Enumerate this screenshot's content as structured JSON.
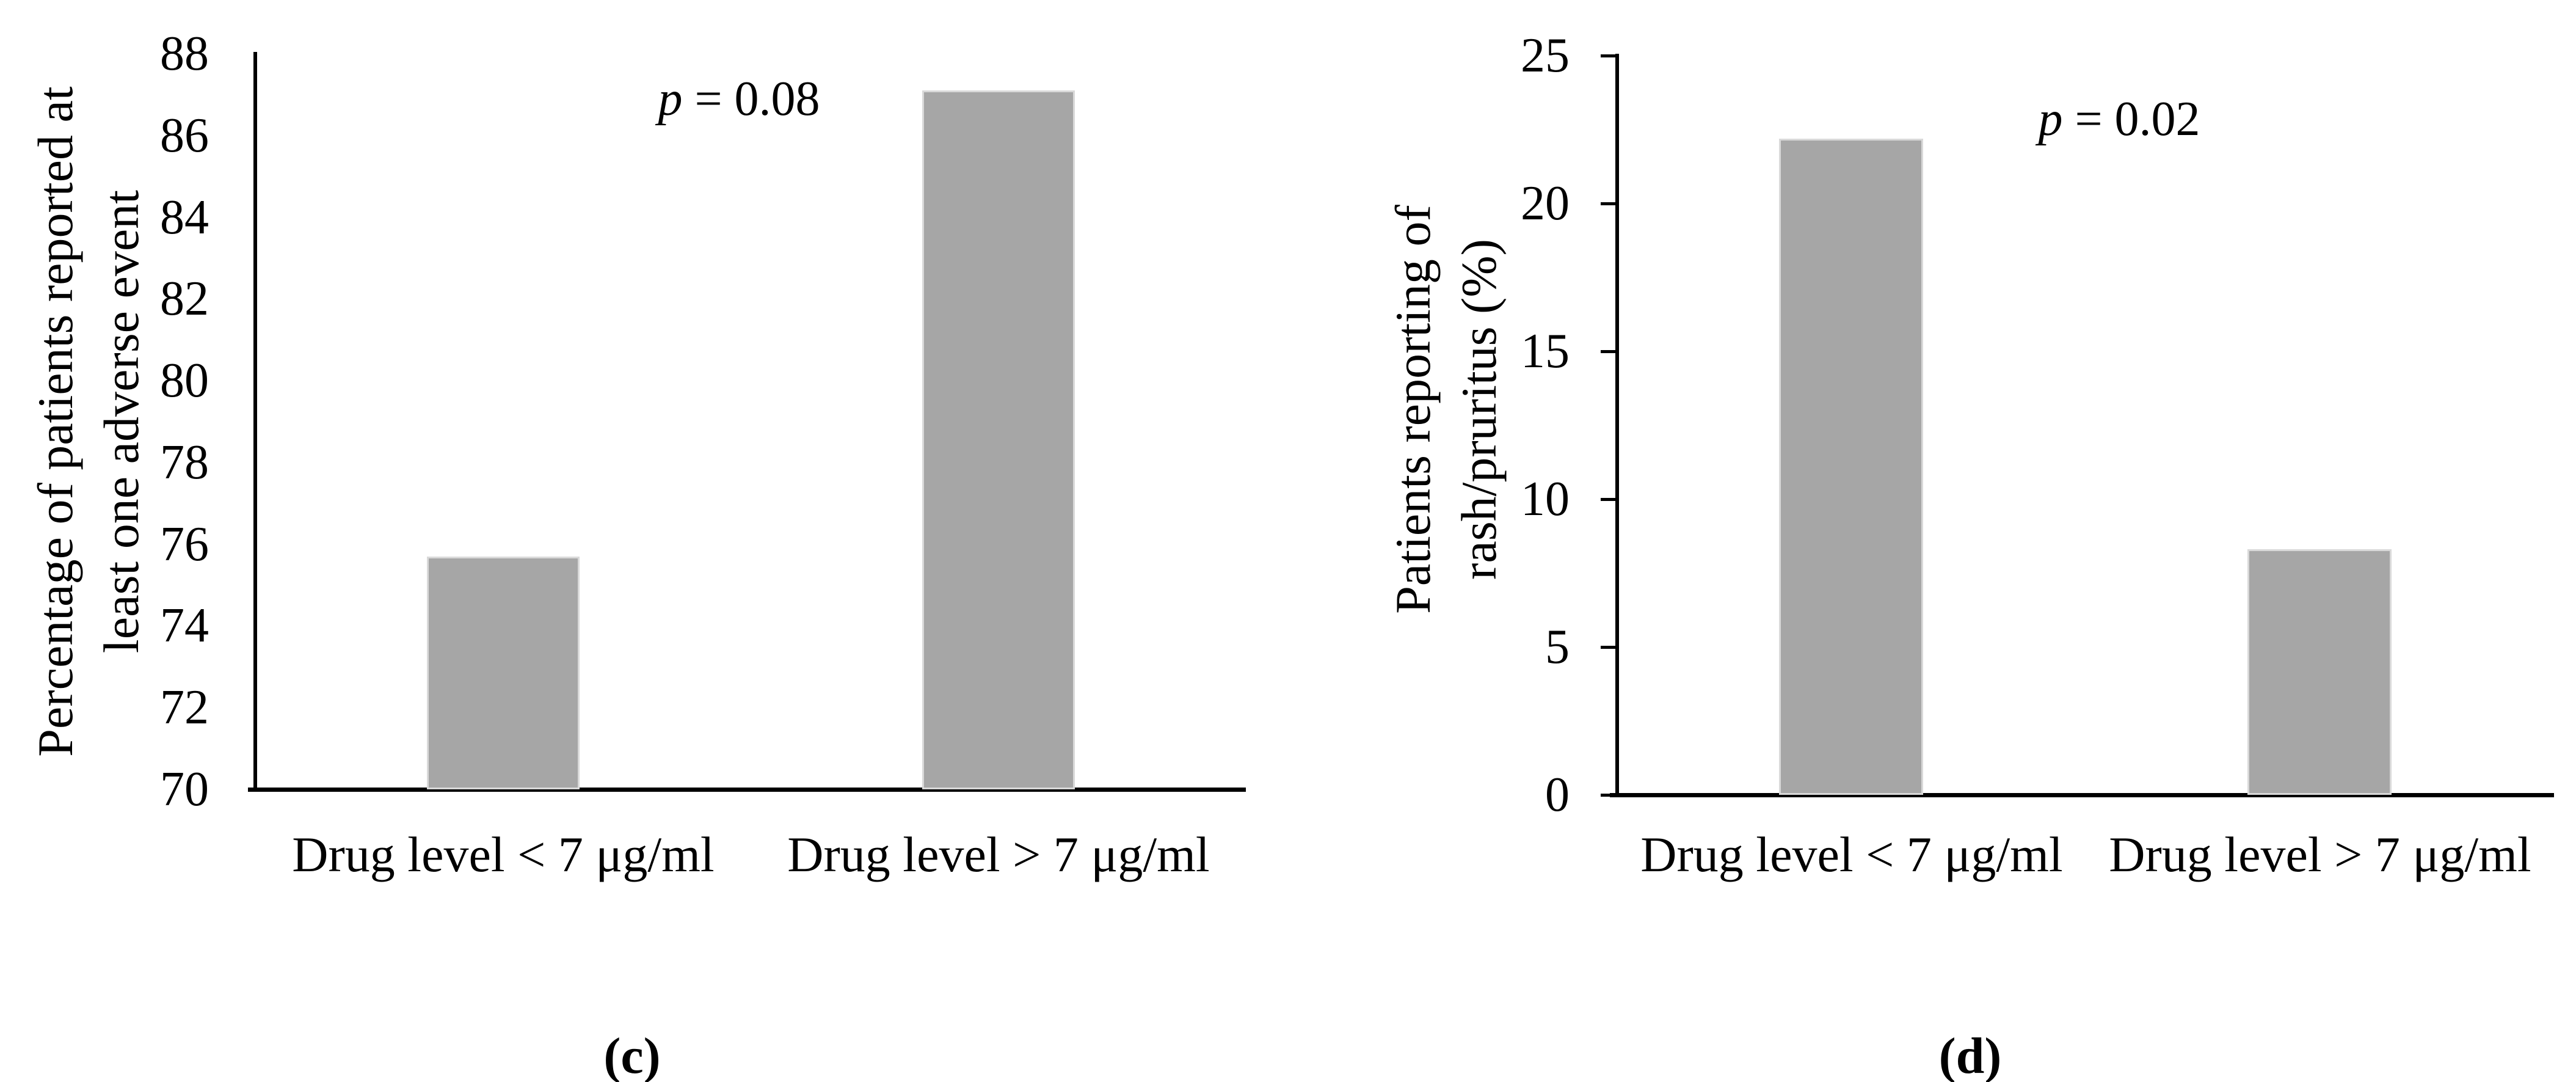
{
  "figure": {
    "background": "#ffffff",
    "axis_color": "#000000",
    "text_color": "#000000"
  },
  "chart_data": [
    {
      "id": "c",
      "type": "bar",
      "title": "",
      "caption": "(c)",
      "ylabel_lines": [
        "Percentage of patients reported at",
        "least one adverse event"
      ],
      "xlabel": "",
      "categories": [
        "Drug level < 7 μg/ml",
        "Drug level > 7 μg/ml"
      ],
      "values": [
        75.7,
        87.1
      ],
      "ylim": [
        70,
        88
      ],
      "ytick_step": 2,
      "yticks": [
        "88",
        "86",
        "84",
        "82",
        "80",
        "78",
        "76",
        "74",
        "72",
        "70"
      ],
      "p_label": {
        "symbol": "p",
        "rest": " = 0.08"
      },
      "bar_color": "#a6a6a6",
      "grid": false,
      "legend": "none",
      "ytick_marks": false
    },
    {
      "id": "d",
      "type": "bar",
      "title": "",
      "caption": "(d)",
      "ylabel_lines": [
        "Patients reporting of",
        "rash/pruritus (%)"
      ],
      "xlabel": "",
      "categories": [
        "Drug level < 7 μg/ml",
        "Drug level > 7 μg/ml"
      ],
      "values": [
        22.2,
        8.3
      ],
      "ylim": [
        0,
        25
      ],
      "ytick_step": 5,
      "yticks": [
        "25",
        "20",
        "15",
        "10",
        "5",
        "0"
      ],
      "p_label": {
        "symbol": "p",
        "rest": " = 0.02"
      },
      "bar_color": "#a6a6a6",
      "grid": false,
      "legend": "none",
      "ytick_marks": true
    }
  ]
}
